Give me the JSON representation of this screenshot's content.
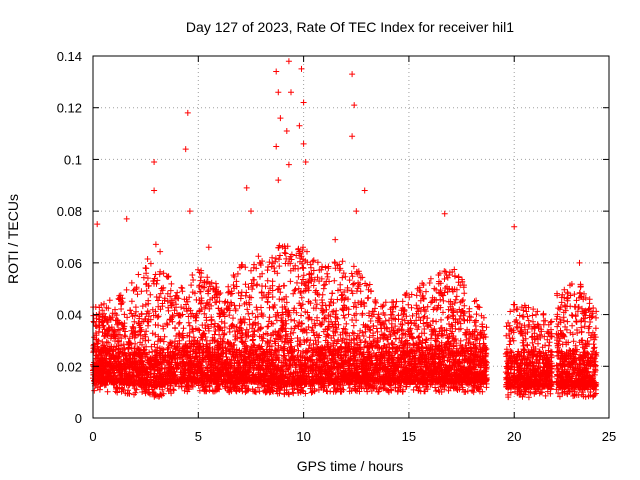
{
  "chart_data": {
    "type": "scatter",
    "title": "Day 127 of 2023, Rate Of TEC Index for receiver hil1",
    "xlabel": "GPS time / hours",
    "ylabel": "ROTI / TECUs",
    "xlim": [
      0,
      24
    ],
    "ylim": [
      0,
      0.14
    ],
    "xticks": [
      0,
      5,
      10,
      15,
      20,
      25
    ],
    "xtick_labels": [
      "0",
      "5",
      "10",
      "15",
      "20",
      "25"
    ],
    "yticks": [
      0,
      0.02,
      0.04,
      0.06,
      0.08,
      0.1,
      0.12,
      0.14
    ],
    "ytick_labels": [
      "0",
      "0.02",
      "0.04",
      "0.06",
      "0.08",
      "0.1",
      "0.12",
      "0.14"
    ],
    "grid": true,
    "marker": "+",
    "color": "#ff0000",
    "gaps_hours": [
      [
        18.7,
        19.6
      ],
      [
        21.8,
        22.0
      ],
      [
        23.9,
        24.0
      ]
    ],
    "peaks": [
      {
        "x": 0.2,
        "y": 0.075
      },
      {
        "x": 1.6,
        "y": 0.077
      },
      {
        "x": 2.9,
        "y": 0.099
      },
      {
        "x": 2.9,
        "y": 0.088
      },
      {
        "x": 4.5,
        "y": 0.118
      },
      {
        "x": 4.4,
        "y": 0.104
      },
      {
        "x": 4.6,
        "y": 0.08
      },
      {
        "x": 5.5,
        "y": 0.066
      },
      {
        "x": 7.3,
        "y": 0.089
      },
      {
        "x": 7.5,
        "y": 0.08
      },
      {
        "x": 8.7,
        "y": 0.134
      },
      {
        "x": 8.8,
        "y": 0.126
      },
      {
        "x": 8.9,
        "y": 0.116
      },
      {
        "x": 8.7,
        "y": 0.105
      },
      {
        "x": 8.8,
        "y": 0.092
      },
      {
        "x": 9.3,
        "y": 0.138
      },
      {
        "x": 9.4,
        "y": 0.126
      },
      {
        "x": 9.2,
        "y": 0.111
      },
      {
        "x": 9.3,
        "y": 0.098
      },
      {
        "x": 9.9,
        "y": 0.135
      },
      {
        "x": 10.0,
        "y": 0.122
      },
      {
        "x": 9.8,
        "y": 0.113
      },
      {
        "x": 10.0,
        "y": 0.106
      },
      {
        "x": 10.1,
        "y": 0.099
      },
      {
        "x": 11.5,
        "y": 0.069
      },
      {
        "x": 12.3,
        "y": 0.133
      },
      {
        "x": 12.4,
        "y": 0.121
      },
      {
        "x": 12.3,
        "y": 0.109
      },
      {
        "x": 12.5,
        "y": 0.08
      },
      {
        "x": 12.9,
        "y": 0.088
      },
      {
        "x": 16.7,
        "y": 0.079
      },
      {
        "x": 20.0,
        "y": 0.074
      },
      {
        "x": 23.1,
        "y": 0.06
      }
    ],
    "envelope": [
      {
        "x": 0.0,
        "top": 0.04,
        "base": 0.01
      },
      {
        "x": 1.0,
        "top": 0.042,
        "base": 0.01
      },
      {
        "x": 2.0,
        "top": 0.05,
        "base": 0.009
      },
      {
        "x": 3.0,
        "top": 0.065,
        "base": 0.008
      },
      {
        "x": 4.0,
        "top": 0.045,
        "base": 0.01
      },
      {
        "x": 5.0,
        "top": 0.055,
        "base": 0.01
      },
      {
        "x": 6.0,
        "top": 0.048,
        "base": 0.01
      },
      {
        "x": 7.0,
        "top": 0.055,
        "base": 0.01
      },
      {
        "x": 8.0,
        "top": 0.06,
        "base": 0.01
      },
      {
        "x": 9.0,
        "top": 0.065,
        "base": 0.009
      },
      {
        "x": 10.0,
        "top": 0.062,
        "base": 0.009
      },
      {
        "x": 11.0,
        "top": 0.055,
        "base": 0.01
      },
      {
        "x": 12.0,
        "top": 0.058,
        "base": 0.01
      },
      {
        "x": 13.0,
        "top": 0.05,
        "base": 0.01
      },
      {
        "x": 14.0,
        "top": 0.04,
        "base": 0.01
      },
      {
        "x": 15.0,
        "top": 0.045,
        "base": 0.01
      },
      {
        "x": 16.0,
        "top": 0.05,
        "base": 0.01
      },
      {
        "x": 17.0,
        "top": 0.055,
        "base": 0.01
      },
      {
        "x": 18.0,
        "top": 0.045,
        "base": 0.01
      },
      {
        "x": 18.7,
        "top": 0.035,
        "base": 0.01
      },
      {
        "x": 19.6,
        "top": 0.04,
        "base": 0.008
      },
      {
        "x": 20.5,
        "top": 0.04,
        "base": 0.008
      },
      {
        "x": 21.8,
        "top": 0.035,
        "base": 0.008
      },
      {
        "x": 22.0,
        "top": 0.045,
        "base": 0.008
      },
      {
        "x": 23.0,
        "top": 0.05,
        "base": 0.008
      },
      {
        "x": 23.9,
        "top": 0.04,
        "base": 0.008
      }
    ]
  }
}
